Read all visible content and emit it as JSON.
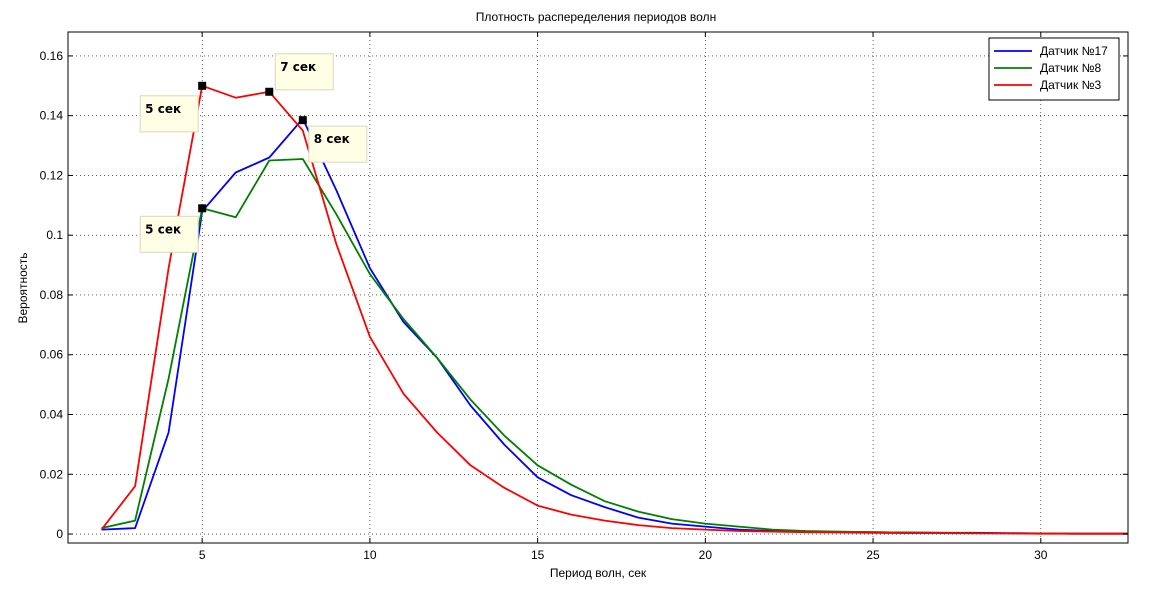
{
  "chart_data": {
    "type": "line",
    "title": "Плотность распеределения периодов волн",
    "xlabel": "Период волн, сек",
    "ylabel": "Вероятность",
    "xlim": [
      1.0,
      32.6
    ],
    "ylim": [
      -0.003,
      0.168
    ],
    "xticks": [
      5,
      10,
      15,
      20,
      25,
      30
    ],
    "yticks": [
      0,
      0.02,
      0.04,
      0.06,
      0.08,
      0.1,
      0.12,
      0.14,
      0.16
    ],
    "ytick_labels": [
      "0",
      "0.02",
      "0.04",
      "0.06",
      "0.08",
      "0.1",
      "0.12",
      "0.14",
      "0.16"
    ],
    "grid": true,
    "legend_position": "top-right",
    "series": [
      {
        "name": "Датчик №17",
        "color": "#0000ff",
        "x": [
          2,
          3,
          4,
          5,
          6,
          7,
          8,
          9,
          10,
          11,
          12,
          13,
          14,
          15,
          16,
          17,
          18,
          19,
          20,
          21,
          22,
          23,
          24,
          25,
          26,
          27,
          28,
          29,
          30,
          31,
          32,
          32.6
        ],
        "y": [
          0.0015,
          0.002,
          0.034,
          0.108,
          0.121,
          0.126,
          0.139,
          0.115,
          0.089,
          0.071,
          0.059,
          0.043,
          0.03,
          0.019,
          0.013,
          0.009,
          0.0055,
          0.0035,
          0.0025,
          0.0015,
          0.001,
          0.0008,
          0.0007,
          0.0006,
          0.0005,
          0.0004,
          0.0004,
          0.0003,
          0.0002,
          0.0001,
          0.0001,
          0.0001
        ]
      },
      {
        "name": "Датчик №8",
        "color": "#008000",
        "x": [
          2,
          3,
          4,
          5,
          6,
          7,
          8,
          9,
          10,
          11,
          12,
          13,
          14,
          15,
          16,
          17,
          18,
          19,
          20,
          21,
          22,
          23,
          24,
          25,
          26,
          27,
          28,
          29,
          30,
          31,
          32,
          32.6
        ],
        "y": [
          0.002,
          0.0045,
          0.052,
          0.109,
          0.106,
          0.125,
          0.1255,
          0.107,
          0.087,
          0.072,
          0.059,
          0.045,
          0.033,
          0.023,
          0.0165,
          0.011,
          0.0075,
          0.005,
          0.0035,
          0.0025,
          0.0015,
          0.001,
          0.0008,
          0.0006,
          0.0005,
          0.0004,
          0.0003,
          0.0002,
          0.0002,
          0.0001,
          0.0001,
          0.0001
        ]
      },
      {
        "name": "Датчик №3",
        "color": "#ff0000",
        "x": [
          2,
          3,
          4,
          5,
          6,
          7,
          8,
          9,
          10,
          11,
          12,
          13,
          14,
          15,
          16,
          17,
          18,
          19,
          20,
          21,
          22,
          23,
          24,
          25,
          26,
          27,
          28,
          29,
          30,
          31,
          32,
          32.6
        ],
        "y": [
          0.0015,
          0.016,
          0.089,
          0.15,
          0.146,
          0.148,
          0.135,
          0.097,
          0.066,
          0.047,
          0.034,
          0.023,
          0.0155,
          0.0095,
          0.0065,
          0.0045,
          0.003,
          0.002,
          0.0015,
          0.001,
          0.0008,
          0.0006,
          0.0005,
          0.0004,
          0.0003,
          0.0003,
          0.0002,
          0.0002,
          0.0001,
          0.0001,
          0.0001,
          0.0001
        ]
      }
    ],
    "annotations": [
      {
        "text": "5 сек",
        "x": 5,
        "y": 0.15
      },
      {
        "text": "7 сек",
        "x": 7,
        "y": 0.148
      },
      {
        "text": "8 сек",
        "x": 8,
        "y": 0.1385
      },
      {
        "text": "5 сек",
        "x": 5,
        "y": 0.109
      }
    ]
  }
}
